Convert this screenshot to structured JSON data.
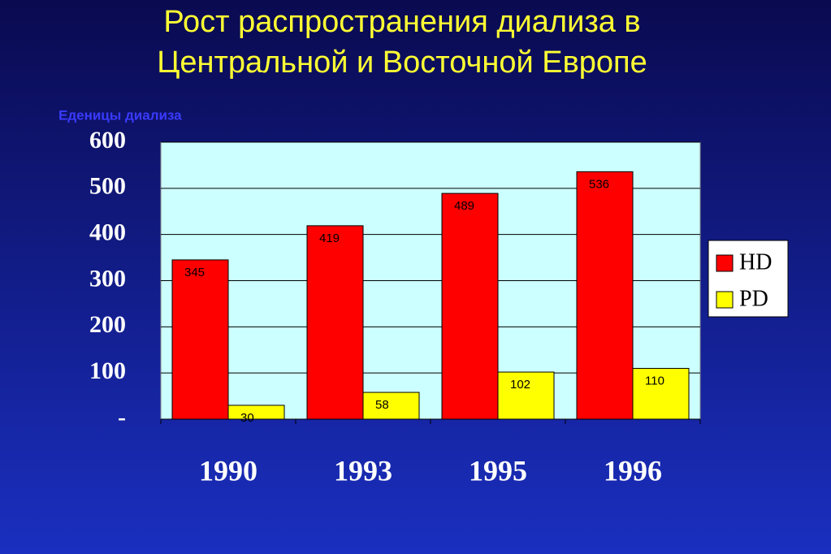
{
  "chart_data": {
    "type": "bar",
    "title": "Рост распространения диализа в Центральной и Восточной Европе",
    "y_label": "Еденицы диализа",
    "categories": [
      "1990",
      "1993",
      "1995",
      "1996"
    ],
    "series": [
      {
        "name": "HD",
        "color": "#ff0000",
        "values": [
          345,
          419,
          489,
          536
        ]
      },
      {
        "name": "PD",
        "color": "#ffff00",
        "values": [
          30,
          58,
          102,
          110
        ]
      }
    ],
    "ylim": [
      0,
      600
    ],
    "yticks": [
      {
        "value": 0,
        "label": "-"
      },
      100,
      200,
      300,
      400,
      500,
      600
    ],
    "grid": true,
    "legend": "right"
  }
}
